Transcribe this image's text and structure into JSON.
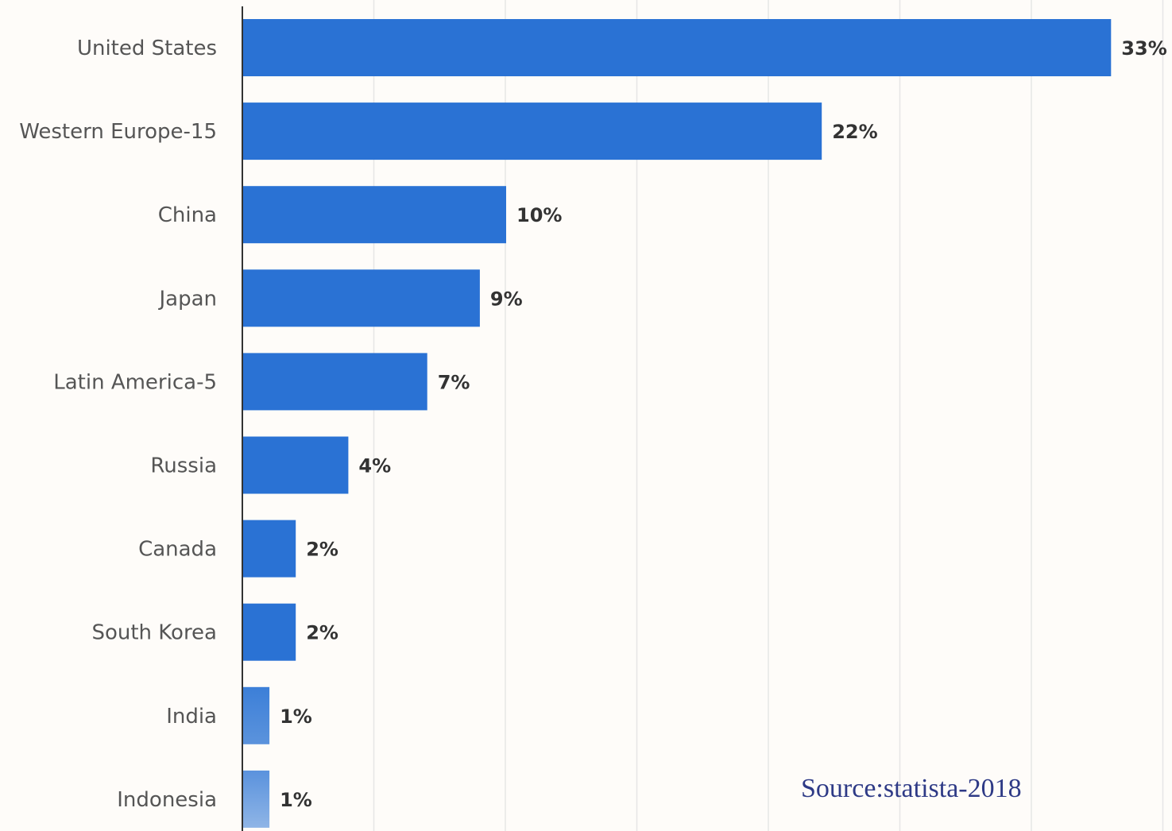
{
  "chart_data": {
    "type": "bar",
    "orientation": "horizontal",
    "categories": [
      "United States",
      "Western Europe-15",
      "China",
      "Japan",
      "Latin America-5",
      "Russia",
      "Canada",
      "South Korea",
      "India",
      "Indonesia"
    ],
    "values": [
      33,
      22,
      10,
      9,
      7,
      4,
      2,
      2,
      1,
      1
    ],
    "value_labels": [
      "33%",
      "22%",
      "10%",
      "9%",
      "7%",
      "4%",
      "2%",
      "2%",
      "1%",
      "1%"
    ],
    "title": "",
    "xlabel": "",
    "ylabel": "",
    "xlim": [
      0,
      35
    ],
    "grid": true,
    "bar_color": "#2a72d4",
    "annotation": "Source:statista-2018"
  }
}
